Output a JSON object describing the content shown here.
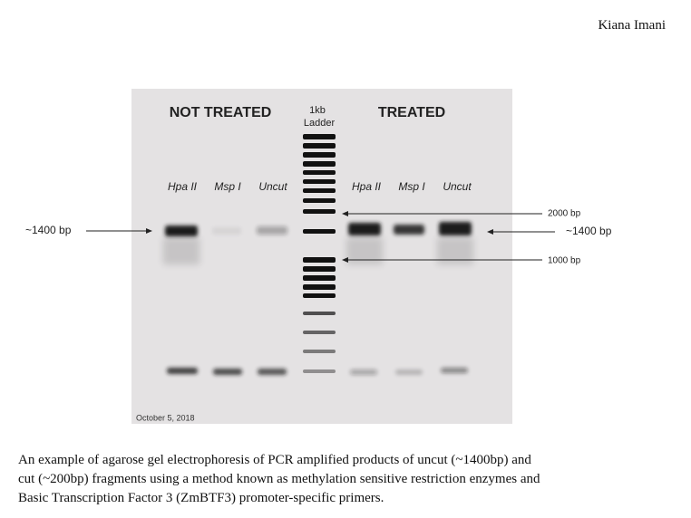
{
  "header": {
    "author": "Kiana Imani"
  },
  "figure": {
    "group_left": "NOT TREATED",
    "ladder": [
      "1kb",
      "Ladder"
    ],
    "group_right": "TREATED",
    "lanes_left": [
      "Hpa II",
      "Msp I",
      "Uncut"
    ],
    "lanes_right": [
      "Hpa II",
      "Msp I",
      "Uncut"
    ],
    "marker_left": "~1400 bp",
    "marker_2000": "2000 bp",
    "marker_right": "~1400 bp",
    "marker_1000": "1000 bp",
    "date": "October 5, 2018"
  },
  "caption": {
    "lines": [
      "An example of agarose gel electrophoresis of PCR amplified products of uncut (~1400bp) and",
      "cut (~200bp) fragments using a method known as methylation sensitive restriction enzymes and",
      "Basic Transcription Factor 3 (ZmBTF3) promoter-specific primers."
    ]
  }
}
